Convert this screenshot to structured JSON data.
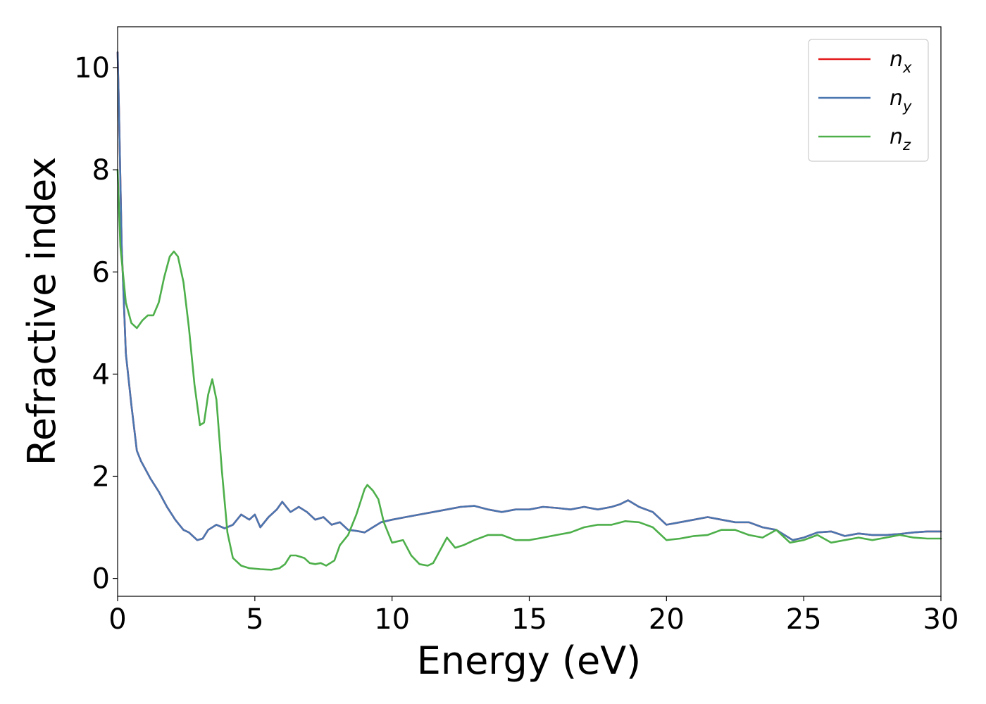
{
  "chart_data": {
    "type": "line",
    "xlabel": "Energy (eV)",
    "ylabel": "Refractive index",
    "xlim": [
      0,
      30
    ],
    "ylim": [
      -0.35,
      10.8
    ],
    "xticks": [
      0,
      5,
      10,
      15,
      20,
      25,
      30
    ],
    "yticks": [
      0,
      2,
      4,
      6,
      8,
      10
    ],
    "grid": false,
    "legend_position": "top-right",
    "series": [
      {
        "name": "n_x",
        "label_base": "n",
        "label_sub": "x",
        "color": "#e41a1c",
        "x": [
          0,
          0.05,
          0.15,
          0.3,
          0.5,
          0.7,
          0.85,
          1.0,
          1.2,
          1.5,
          1.8,
          2.1,
          2.4,
          2.6,
          2.9,
          3.1,
          3.3,
          3.6,
          3.9,
          4.2,
          4.5,
          4.8,
          5.0,
          5.2,
          5.5,
          5.8,
          6.0,
          6.3,
          6.6,
          6.9,
          7.2,
          7.5,
          7.8,
          8.1,
          8.4,
          8.7,
          9.0,
          9.3,
          9.6,
          10.0,
          10.5,
          11.0,
          11.5,
          12.0,
          12.5,
          13.0,
          13.5,
          14.0,
          14.5,
          15.0,
          15.5,
          16.0,
          16.5,
          17.0,
          17.5,
          18.0,
          18.3,
          18.6,
          19.0,
          19.5,
          20.0,
          20.5,
          21.0,
          21.5,
          22.0,
          22.5,
          23.0,
          23.5,
          24.0,
          24.6,
          25.0,
          25.5,
          26.0,
          26.5,
          27.0,
          27.5,
          28.0,
          28.5,
          29.0,
          29.5,
          30.0
        ],
        "y": [
          10.3,
          9.2,
          6.5,
          4.4,
          3.4,
          2.5,
          2.3,
          2.15,
          1.95,
          1.7,
          1.4,
          1.15,
          0.95,
          0.9,
          0.75,
          0.78,
          0.95,
          1.05,
          0.98,
          1.05,
          1.25,
          1.15,
          1.25,
          1.0,
          1.2,
          1.35,
          1.5,
          1.3,
          1.4,
          1.3,
          1.15,
          1.2,
          1.05,
          1.1,
          0.95,
          0.93,
          0.9,
          1.0,
          1.1,
          1.15,
          1.2,
          1.25,
          1.3,
          1.35,
          1.4,
          1.42,
          1.35,
          1.3,
          1.35,
          1.35,
          1.4,
          1.38,
          1.35,
          1.4,
          1.35,
          1.4,
          1.45,
          1.53,
          1.4,
          1.3,
          1.05,
          1.1,
          1.15,
          1.2,
          1.15,
          1.1,
          1.1,
          1.0,
          0.95,
          0.75,
          0.8,
          0.9,
          0.92,
          0.83,
          0.88,
          0.85,
          0.85,
          0.87,
          0.9,
          0.92,
          0.92
        ]
      },
      {
        "name": "n_y",
        "label_base": "n",
        "label_sub": "y",
        "color": "#4a76b0",
        "x": [
          0,
          0.05,
          0.15,
          0.3,
          0.5,
          0.7,
          0.85,
          1.0,
          1.2,
          1.5,
          1.8,
          2.1,
          2.4,
          2.6,
          2.9,
          3.1,
          3.3,
          3.6,
          3.9,
          4.2,
          4.5,
          4.8,
          5.0,
          5.2,
          5.5,
          5.8,
          6.0,
          6.3,
          6.6,
          6.9,
          7.2,
          7.5,
          7.8,
          8.1,
          8.4,
          8.7,
          9.0,
          9.3,
          9.6,
          10.0,
          10.5,
          11.0,
          11.5,
          12.0,
          12.5,
          13.0,
          13.5,
          14.0,
          14.5,
          15.0,
          15.5,
          16.0,
          16.5,
          17.0,
          17.5,
          18.0,
          18.3,
          18.6,
          19.0,
          19.5,
          20.0,
          20.5,
          21.0,
          21.5,
          22.0,
          22.5,
          23.0,
          23.5,
          24.0,
          24.6,
          25.0,
          25.5,
          26.0,
          26.5,
          27.0,
          27.5,
          28.0,
          28.5,
          29.0,
          29.5,
          30.0
        ],
        "y": [
          10.3,
          9.2,
          6.5,
          4.4,
          3.4,
          2.5,
          2.3,
          2.15,
          1.95,
          1.7,
          1.4,
          1.15,
          0.95,
          0.9,
          0.75,
          0.78,
          0.95,
          1.05,
          0.98,
          1.05,
          1.25,
          1.15,
          1.25,
          1.0,
          1.2,
          1.35,
          1.5,
          1.3,
          1.4,
          1.3,
          1.15,
          1.2,
          1.05,
          1.1,
          0.95,
          0.93,
          0.9,
          1.0,
          1.1,
          1.15,
          1.2,
          1.25,
          1.3,
          1.35,
          1.4,
          1.42,
          1.35,
          1.3,
          1.35,
          1.35,
          1.4,
          1.38,
          1.35,
          1.4,
          1.35,
          1.4,
          1.45,
          1.53,
          1.4,
          1.3,
          1.05,
          1.1,
          1.15,
          1.2,
          1.15,
          1.1,
          1.1,
          1.0,
          0.95,
          0.75,
          0.8,
          0.9,
          0.92,
          0.83,
          0.88,
          0.85,
          0.85,
          0.87,
          0.9,
          0.92,
          0.92
        ]
      },
      {
        "name": "n_z",
        "label_base": "n",
        "label_sub": "z",
        "color": "#4daf4a",
        "x": [
          0,
          0.1,
          0.3,
          0.5,
          0.7,
          0.9,
          1.1,
          1.3,
          1.5,
          1.7,
          1.9,
          2.05,
          2.2,
          2.4,
          2.6,
          2.8,
          3.0,
          3.15,
          3.3,
          3.45,
          3.6,
          3.8,
          4.0,
          4.2,
          4.5,
          4.8,
          5.2,
          5.6,
          5.9,
          6.1,
          6.3,
          6.5,
          6.8,
          7.0,
          7.2,
          7.4,
          7.6,
          7.9,
          8.1,
          8.4,
          8.7,
          9.0,
          9.1,
          9.3,
          9.5,
          9.7,
          10.0,
          10.4,
          10.7,
          11.0,
          11.3,
          11.5,
          11.8,
          12.0,
          12.3,
          12.6,
          13.0,
          13.5,
          14.0,
          14.5,
          15.0,
          15.5,
          16.0,
          16.5,
          17.0,
          17.5,
          18.0,
          18.5,
          19.0,
          19.5,
          20.0,
          20.5,
          21.0,
          21.5,
          22.0,
          22.5,
          23.0,
          23.5,
          24.0,
          24.5,
          25.0,
          25.5,
          26.0,
          26.5,
          27.0,
          27.5,
          28.0,
          28.5,
          29.0,
          29.5,
          30.0
        ],
        "y": [
          8.0,
          6.5,
          5.4,
          5.0,
          4.9,
          5.05,
          5.15,
          5.15,
          5.4,
          5.9,
          6.3,
          6.4,
          6.3,
          5.8,
          4.9,
          3.8,
          3.0,
          3.05,
          3.6,
          3.9,
          3.5,
          2.1,
          0.9,
          0.4,
          0.25,
          0.2,
          0.18,
          0.17,
          0.2,
          0.28,
          0.45,
          0.45,
          0.4,
          0.3,
          0.28,
          0.3,
          0.25,
          0.35,
          0.65,
          0.85,
          1.25,
          1.75,
          1.83,
          1.72,
          1.55,
          1.1,
          0.7,
          0.75,
          0.45,
          0.28,
          0.25,
          0.3,
          0.6,
          0.8,
          0.6,
          0.65,
          0.75,
          0.85,
          0.85,
          0.75,
          0.75,
          0.8,
          0.85,
          0.9,
          1.0,
          1.05,
          1.05,
          1.12,
          1.1,
          1.0,
          0.75,
          0.78,
          0.83,
          0.85,
          0.95,
          0.95,
          0.85,
          0.8,
          0.95,
          0.7,
          0.75,
          0.85,
          0.7,
          0.75,
          0.8,
          0.75,
          0.8,
          0.85,
          0.8,
          0.78,
          0.78
        ]
      }
    ]
  }
}
